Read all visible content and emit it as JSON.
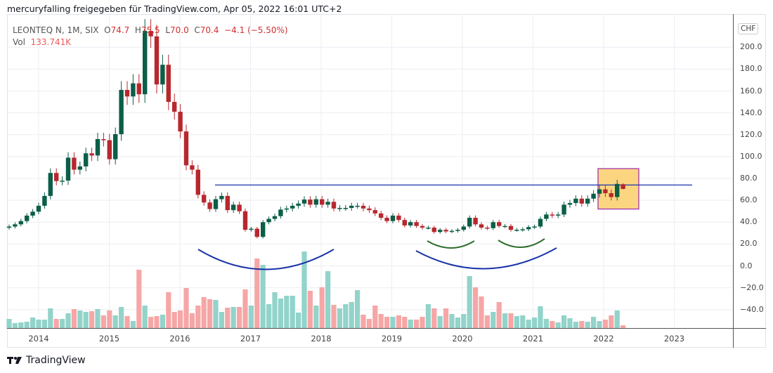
{
  "header": {
    "title": "mercuryfalling freigegeben für TradingView.com, Apr 05, 2022 16:01 UTC+2"
  },
  "legend": {
    "symbol": "LEONTEQ N, 1M, SIX",
    "open_label": "O",
    "open": "74.7",
    "high_label": "H",
    "high": "75.5",
    "low_label": "L",
    "low": "70.0",
    "close_label": "C",
    "close": "70.4",
    "change": "−4.1 (−5.50%)",
    "vol_label": "Vol",
    "vol": "133.741K"
  },
  "currency": "CHF",
  "footer": {
    "brand": "TradingView"
  },
  "colors": {
    "up": "#0b5e47",
    "down": "#b7282e",
    "vol_up": "#92d3ca",
    "vol_down": "#f6a6a6",
    "line": "#1b34a8",
    "arc_green": "#2e6f2a",
    "box_fill": "#fcd581",
    "box_border": "#9c27b0"
  },
  "chart_data": {
    "type": "candlestick",
    "interval": "1M",
    "start_month": "2013-08",
    "y_ticks": [
      "200.0",
      "180.0",
      "160.0",
      "140.0",
      "120.0",
      "100.0",
      "80.0",
      "60.0",
      "40.0",
      "20.0",
      "0.0",
      "−20.0",
      "−40.0"
    ],
    "y_tick_values": [
      200,
      180,
      160,
      140,
      120,
      100,
      80,
      60,
      40,
      20,
      0,
      -20,
      -40
    ],
    "x_ticks": [
      "2014",
      "2015",
      "2016",
      "2017",
      "2018",
      "2019",
      "2020",
      "2021",
      "2022",
      "2023"
    ],
    "ylim": [
      -60,
      230
    ],
    "closes": [
      36,
      38,
      41,
      46,
      49.6,
      55,
      64,
      85,
      77.6,
      78,
      99,
      88,
      91,
      103,
      101,
      116,
      115,
      97.6,
      120.5,
      161,
      155,
      167,
      157,
      215,
      210,
      166,
      184,
      150,
      141,
      123,
      92,
      88,
      65,
      58,
      52,
      61,
      64,
      51,
      56,
      50,
      33,
      34,
      26.5,
      40,
      43,
      45.5,
      51.5,
      52.5,
      55,
      57,
      60.7,
      56,
      61,
      56,
      58.6,
      52.5,
      53,
      53,
      55,
      55,
      52.5,
      51,
      48,
      44,
      41,
      46,
      42,
      37,
      40,
      36.5,
      35,
      35,
      31,
      33,
      31.5,
      32,
      33,
      36,
      44,
      38,
      35,
      34.5,
      40,
      36.5,
      36.5,
      33,
      33,
      33.5,
      35.5,
      36,
      43,
      47,
      46,
      47,
      56,
      57.5,
      61.5,
      57,
      61.5,
      66,
      70,
      66.5,
      63,
      75,
      70.4
    ],
    "last_bar": {
      "open": 74.7,
      "high": 75.5,
      "low": 70.0,
      "close": 70.4
    },
    "volume_k": [
      378,
      216,
      243,
      270,
      432,
      351,
      351,
      783,
      378,
      378,
      594,
      756,
      702,
      648,
      675,
      756,
      513,
      702,
      513,
      837,
      486,
      297,
      2268,
      891,
      459,
      486,
      540,
      1404,
      648,
      702,
      1566,
      594,
      891,
      1215,
      1134,
      1107,
      648,
      810,
      837,
      837,
      1512,
      891,
      2700,
      2457,
      945,
      1404,
      1161,
      1269,
      1269,
      621,
      2970,
      1458,
      891,
      1593,
      2214,
      918,
      783,
      945,
      1026,
      1485,
      540,
      378,
      891,
      567,
      459,
      459,
      513,
      459,
      351,
      351,
      459,
      945,
      783,
      486,
      783,
      567,
      432,
      567,
      2025,
      1593,
      1242,
      513,
      648,
      1026,
      594,
      594,
      486,
      513,
      351,
      432,
      864,
      378,
      297,
      243,
      513,
      405,
      270,
      297,
      270,
      459,
      297,
      351,
      513,
      702,
      134
    ],
    "annotations": {
      "resistance_level": 74,
      "highlight_box_price_range": [
        52,
        89
      ]
    }
  }
}
